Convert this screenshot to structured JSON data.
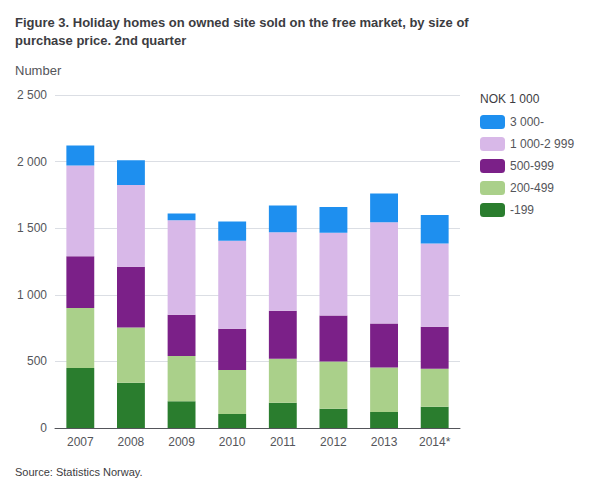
{
  "chart_data": {
    "type": "bar",
    "title": "Figure 3. Holiday homes on owned site sold on the free market, by size of\npurchase price. 2nd quarter",
    "ylabel": "Number",
    "source": "Source: Statistics Norway.",
    "legend_title": "NOK 1 000",
    "categories": [
      "2007",
      "2008",
      "2009",
      "2010",
      "2011",
      "2012",
      "2013",
      "2014*"
    ],
    "series": [
      {
        "name": "-199",
        "color": "#2a7d2e",
        "values": [
          450,
          340,
          200,
          105,
          190,
          145,
          120,
          160
        ]
      },
      {
        "name": "200-499",
        "color": "#aad08a",
        "values": [
          450,
          415,
          340,
          330,
          330,
          355,
          335,
          285
        ]
      },
      {
        "name": "500-999",
        "color": "#7b2088",
        "values": [
          390,
          455,
          310,
          310,
          360,
          345,
          330,
          315
        ]
      },
      {
        "name": "1 000-2 999",
        "color": "#d8b8e8",
        "values": [
          680,
          615,
          710,
          660,
          590,
          620,
          760,
          625
        ]
      },
      {
        "name": "3 000-",
        "color": "#1e8fef",
        "values": [
          150,
          185,
          50,
          145,
          200,
          195,
          215,
          215
        ]
      }
    ],
    "stacked": true,
    "ylim": [
      0,
      2500
    ],
    "yticks": [
      0,
      500,
      {
        "value": 1000,
        "label": "1 000"
      },
      {
        "value": 1500,
        "label": "1 500"
      },
      {
        "value": 2000,
        "label": "2 000"
      },
      {
        "value": 2500,
        "label": "2 500"
      }
    ],
    "grid": true,
    "legend": "right"
  }
}
